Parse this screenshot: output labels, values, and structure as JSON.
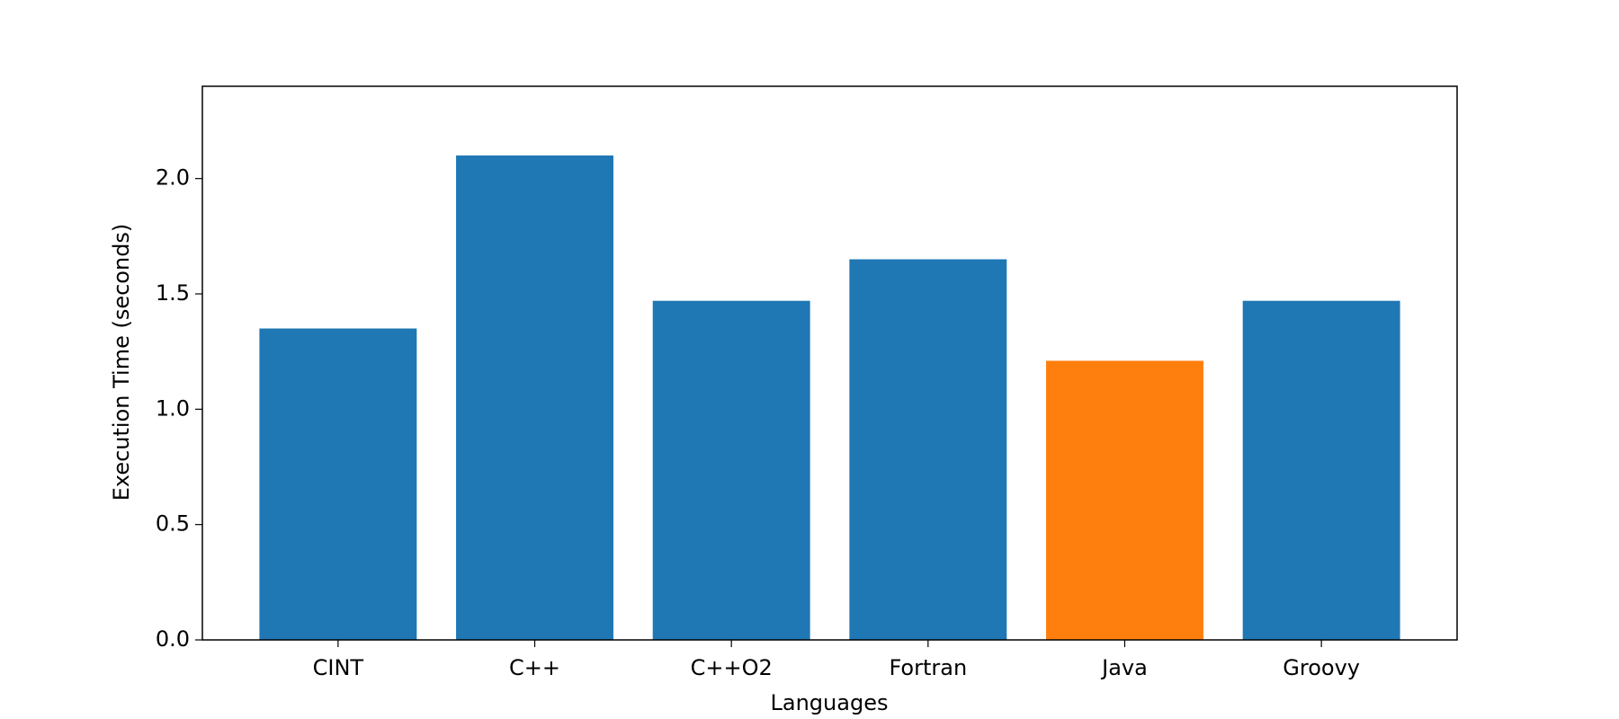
{
  "chart_data": {
    "type": "bar",
    "x_label": "Languages",
    "y_label": "Execution Time (seconds)",
    "categories": [
      "CINT",
      "C++",
      "C++O2",
      "Fortran",
      "Java",
      "Groovy"
    ],
    "values": [
      1.35,
      2.1,
      1.47,
      1.65,
      1.21,
      1.47
    ],
    "colors": [
      "#1f77b4",
      "#1f77b4",
      "#1f77b4",
      "#1f77b4",
      "#ff7f0e",
      "#1f77b4"
    ],
    "ylim": [
      0,
      2.4
    ],
    "yticks": [
      {
        "value": 0,
        "label": "0.0"
      },
      0.5,
      {
        "value": 1,
        "label": "1.0"
      },
      1.5,
      {
        "value": 2,
        "label": "2.0"
      }
    ],
    "grid": false
  }
}
